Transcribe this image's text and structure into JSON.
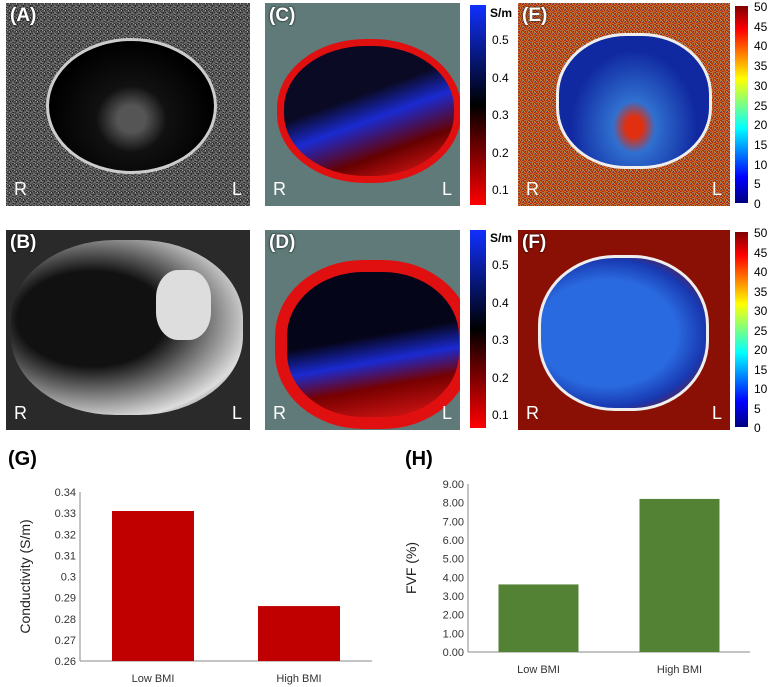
{
  "panels": {
    "A": {
      "label": "(A)",
      "left": "R",
      "right": "L"
    },
    "B": {
      "label": "(B)",
      "left": "R",
      "right": "L"
    },
    "C": {
      "label": "(C)",
      "left": "R",
      "right": "L"
    },
    "D": {
      "label": "(D)",
      "left": "R",
      "right": "L"
    },
    "E": {
      "label": "(E)",
      "left": "R",
      "right": "L"
    },
    "F": {
      "label": "(F)",
      "left": "R",
      "right": "L"
    },
    "G": {
      "label": "(G)"
    },
    "H": {
      "label": "(H)"
    }
  },
  "conductivity_colorbar": {
    "unit": "S/m",
    "ticks": [
      "0.5",
      "0.4",
      "0.3",
      "0.2",
      "0.1"
    ],
    "colors": [
      "#1030ff",
      "#000000",
      "#ff0000"
    ]
  },
  "fvf_colorbar": {
    "ticks": [
      "50",
      "45",
      "40",
      "35",
      "30",
      "25",
      "20",
      "15",
      "10",
      "5",
      "0"
    ],
    "colormap": "jet"
  },
  "chart_data": [
    {
      "type": "bar",
      "panel": "G",
      "categories": [
        "Low BMI",
        "High BMI"
      ],
      "values": [
        0.331,
        0.286
      ],
      "ylabel": "Conductivity (S/m)",
      "ylim": [
        0.26,
        0.34
      ],
      "yticks": [
        "0.34",
        "0.33",
        "0.32",
        "0.31",
        "0.3",
        "0.29",
        "0.28",
        "0.27",
        "0.26"
      ],
      "color": "#c00000",
      "grid": false
    },
    {
      "type": "bar",
      "panel": "H",
      "categories": [
        "Low BMI",
        "High BMI"
      ],
      "values": [
        3.62,
        8.2
      ],
      "ylabel": "FVF (%)",
      "ylim": [
        0,
        9
      ],
      "yticks": [
        "9.00",
        "8.00",
        "7.00",
        "6.00",
        "5.00",
        "4.00",
        "3.00",
        "2.00",
        "1.00",
        "0.00"
      ],
      "color": "#548235",
      "grid": false
    }
  ]
}
